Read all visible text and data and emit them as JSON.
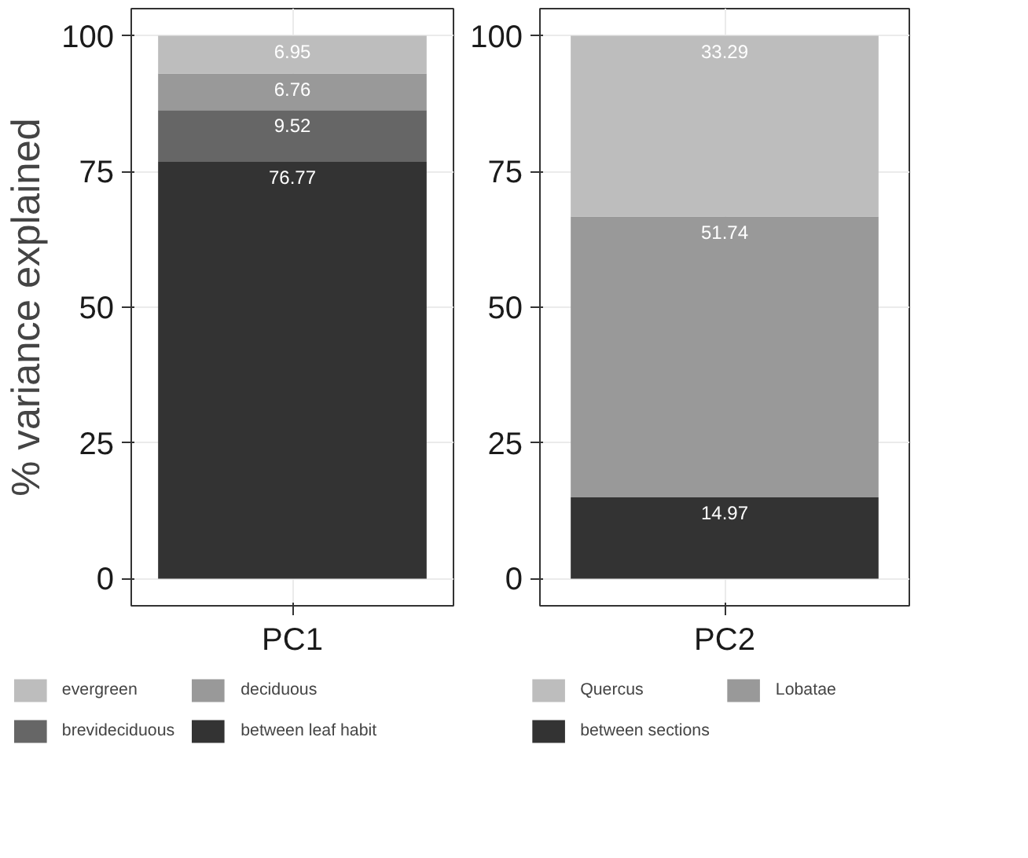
{
  "chart_data": [
    {
      "type": "bar",
      "stacked": true,
      "categories": [
        "PC1"
      ],
      "ylabel": "% variance explained",
      "ylim": [
        -5,
        105
      ],
      "yticks": [
        0,
        25,
        50,
        75,
        100
      ],
      "grid": true,
      "legend": "bottom",
      "data_labels": true,
      "series": [
        {
          "name": "between leaf habit",
          "color": "#333333",
          "values": [
            76.77
          ]
        },
        {
          "name": "brevideciduous",
          "color": "#666666",
          "values": [
            9.52
          ]
        },
        {
          "name": "deciduous",
          "color": "#999999",
          "values": [
            6.76
          ]
        },
        {
          "name": "evergreen",
          "color": "#bdbdbd",
          "values": [
            6.95
          ]
        }
      ]
    },
    {
      "type": "bar",
      "stacked": true,
      "categories": [
        "PC2"
      ],
      "ylim": [
        -5,
        105
      ],
      "yticks": [
        0,
        25,
        50,
        75,
        100
      ],
      "grid": true,
      "legend": "bottom",
      "data_labels": true,
      "series": [
        {
          "name": "between sections",
          "color": "#333333",
          "values": [
            14.97
          ]
        },
        {
          "name": "Lobatae",
          "color": "#999999",
          "values": [
            51.74
          ]
        },
        {
          "name": "Quercus",
          "color": "#bdbdbd",
          "values": [
            33.29
          ]
        }
      ]
    }
  ]
}
